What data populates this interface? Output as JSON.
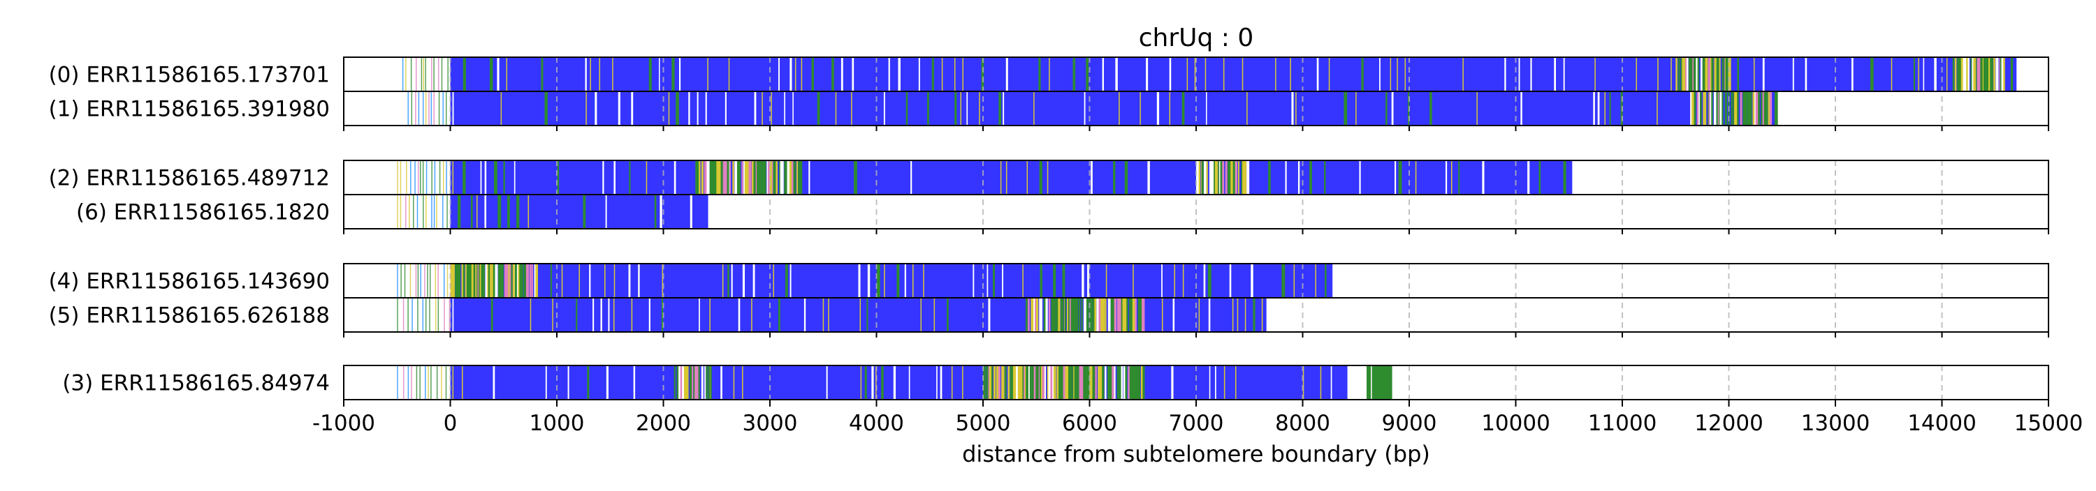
{
  "chart_data": {
    "type": "bar",
    "title": "chrUq : 0",
    "xlabel": "distance from subtelomere boundary (bp)",
    "xlim": [
      -1000,
      15000
    ],
    "xticks": [
      -1000,
      0,
      1000,
      2000,
      3000,
      4000,
      5000,
      6000,
      7000,
      8000,
      9000,
      10000,
      11000,
      12000,
      13000,
      14000,
      15000
    ],
    "grid": "vertical dashed at each 1000 bp",
    "colors": {
      "telomere_repeat": "#3535ff",
      "variant_green": "#2e8b2e",
      "variant_yellow": "#d8c832",
      "variant_pink": "#e080c0",
      "variant_cyan": "#1e90ff",
      "gap": "#ffffff"
    },
    "groups": [
      {
        "reads": [
          {
            "label": "(0) ERR11586165.173701",
            "end": 14700,
            "seed": 1,
            "green_density": 0.5,
            "dense": [
              [
                11500,
                12000
              ],
              [
                14100,
                14600
              ]
            ],
            "prefix": [
              -450,
              -10
            ]
          },
          {
            "label": "(1) ERR11586165.391980",
            "end": 12450,
            "seed": 2,
            "green_density": 0.6,
            "dense": [
              [
                11650,
                12400
              ]
            ],
            "prefix": [
              -400,
              -10
            ]
          }
        ]
      },
      {
        "reads": [
          {
            "label": "(2) ERR11586165.489712",
            "end": 10530,
            "seed": 3,
            "green_density": 0.5,
            "dense": [
              [
                2300,
                3300
              ],
              [
                7000,
                7500
              ]
            ],
            "prefix": [
              -500,
              -10
            ]
          },
          {
            "label": "(6) ERR11586165.1820",
            "end": 2420,
            "seed": 4,
            "green_density": 0.5,
            "dense": [],
            "prefix": [
              -500,
              -10
            ]
          }
        ]
      },
      {
        "reads": [
          {
            "label": "(4) ERR11586165.143690",
            "end": 8280,
            "seed": 5,
            "green_density": 0.5,
            "dense": [
              [
                0,
                800
              ]
            ],
            "prefix": [
              -500,
              -10
            ]
          },
          {
            "label": "(5) ERR11586165.626188",
            "end": 7660,
            "seed": 6,
            "green_density": 0.55,
            "dense": [
              [
                5400,
                6500
              ]
            ],
            "prefix": [
              -500,
              -10
            ]
          }
        ]
      },
      {
        "reads": [
          {
            "label": "(3) ERR11586165.84974",
            "end": 8420,
            "seed": 7,
            "green_density": 0.6,
            "dense": [
              [
                2100,
                2450
              ],
              [
                5000,
                6500
              ]
            ],
            "prefix": [
              -500,
              -10
            ],
            "extra_blocks": [
              {
                "from": 8600,
                "to": 8640,
                "color": "green"
              },
              {
                "from": 8650,
                "to": 8840,
                "color": "green"
              }
            ]
          }
        ]
      }
    ]
  }
}
